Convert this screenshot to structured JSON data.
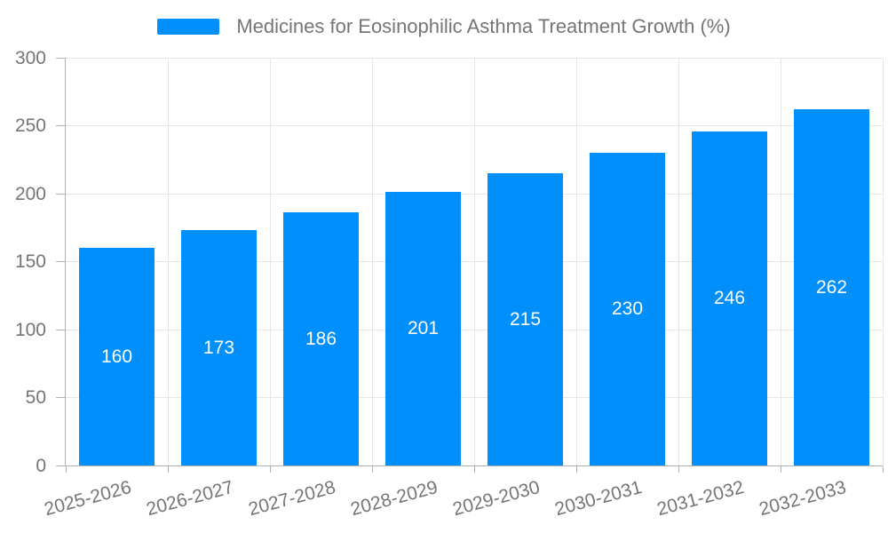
{
  "chart_data": {
    "type": "bar",
    "title": "Medicines for Eosinophilic Asthma Treatment Growth (%)",
    "categories": [
      "2025-2026",
      "2026-2027",
      "2027-2028",
      "2028-2029",
      "2029-2030",
      "2030-2031",
      "2031-2032",
      "2032-2033"
    ],
    "values": [
      160,
      173,
      186,
      201,
      215,
      230,
      246,
      262
    ],
    "bar_labels": [
      "160",
      "173",
      "186",
      "201",
      "215",
      "230",
      "246",
      "262"
    ],
    "ylim": [
      0,
      300
    ],
    "yticks": [
      0,
      50,
      100,
      150,
      200,
      250,
      300
    ],
    "xlabel": "",
    "ylabel": "",
    "grid": true,
    "legend_position": "top",
    "colors": {
      "bar": "#008FFB",
      "grid": "#e7e7e7",
      "axis": "#b1b1b1",
      "text": "#757575",
      "bar_label": "#ffffff"
    }
  }
}
